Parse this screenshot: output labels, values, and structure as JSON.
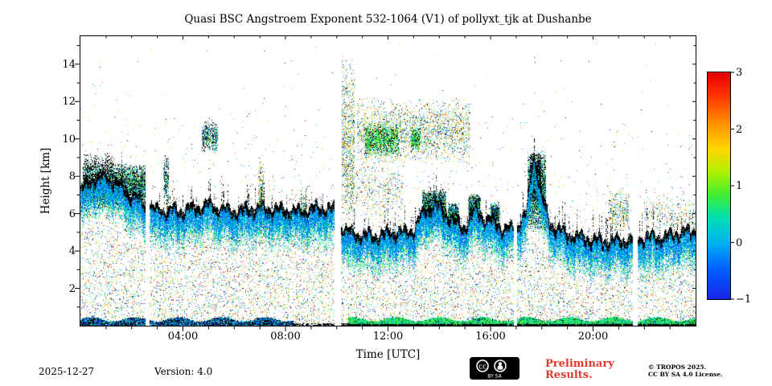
{
  "footer": {
    "date": "2025-12-27",
    "version": "Version: 4.0",
    "preliminary_line1": "Preliminary",
    "preliminary_line2": "Results.",
    "preliminary_color": "#e23b2e",
    "copyright_line1": "© TROPOS 2025.",
    "copyright_line2": "CC BY SA 4.0 License.",
    "cc_badge": {
      "cc": "cc",
      "by_sa": "BY  SA"
    }
  },
  "chart_data": {
    "type": "heatmap",
    "title": "Quasi BSC Angstroem Exponent 532-1064 (V1) of pollyxt_tjk at Dushanbe",
    "xlabel": "Time [UTC]",
    "ylabel": "Height [km]",
    "xlim": [
      0,
      24
    ],
    "ylim": [
      0,
      15.5
    ],
    "grid": false,
    "x_major_ticks": [
      {
        "hour": 4,
        "label": "04:00"
      },
      {
        "hour": 8,
        "label": "08:00"
      },
      {
        "hour": 12,
        "label": "12:00"
      },
      {
        "hour": 16,
        "label": "16:00"
      },
      {
        "hour": 20,
        "label": "20:00"
      }
    ],
    "x_minor_step_hours": 1,
    "y_major_ticks": [
      {
        "km": 2,
        "label": "2"
      },
      {
        "km": 4,
        "label": "4"
      },
      {
        "km": 6,
        "label": "6"
      },
      {
        "km": 8,
        "label": "8"
      },
      {
        "km": 10,
        "label": "10"
      },
      {
        "km": 12,
        "label": "12"
      },
      {
        "km": 14,
        "label": "14"
      }
    ],
    "y_minor_step_km": 1,
    "colorbar": {
      "position": "right",
      "vmin": -1,
      "vmax": 3,
      "ticks": [
        {
          "value": 3,
          "label": "3"
        },
        {
          "value": 2,
          "label": "2"
        },
        {
          "value": 1,
          "label": "1"
        },
        {
          "value": 0,
          "label": "0"
        },
        {
          "value": -1,
          "label": "−1"
        }
      ],
      "colormap_stops": [
        {
          "pos": 0.0,
          "color": "#1724e8"
        },
        {
          "pos": 0.14,
          "color": "#0064ff"
        },
        {
          "pos": 0.25,
          "color": "#00b4f0"
        },
        {
          "pos": 0.36,
          "color": "#00e0b0"
        },
        {
          "pos": 0.46,
          "color": "#40ee30"
        },
        {
          "pos": 0.56,
          "color": "#b0f000"
        },
        {
          "pos": 0.66,
          "color": "#ffd800"
        },
        {
          "pos": 0.78,
          "color": "#ff8c00"
        },
        {
          "pos": 0.9,
          "color": "#ff3000"
        },
        {
          "pos": 1.0,
          "color": "#e60000"
        }
      ]
    },
    "layer_top_km": [
      [
        0,
        7.4
      ],
      [
        0.5,
        7.9
      ],
      [
        1,
        8.1
      ],
      [
        1.5,
        7.6
      ],
      [
        2,
        7.1
      ],
      [
        2.5,
        6.6
      ],
      [
        3,
        6.3
      ],
      [
        3.5,
        6.2
      ],
      [
        4,
        6.3
      ],
      [
        4.5,
        6.4
      ],
      [
        5,
        6.6
      ],
      [
        5.5,
        6.3
      ],
      [
        6,
        6.2
      ],
      [
        6.5,
        6.3
      ],
      [
        7,
        6.4
      ],
      [
        7.5,
        6.3
      ],
      [
        8,
        6.3
      ],
      [
        8.5,
        6.2
      ],
      [
        9,
        6.3
      ],
      [
        9.5,
        6.4
      ],
      [
        9.9,
        6.3
      ],
      [
        10.2,
        5.4
      ],
      [
        10.6,
        5.0
      ],
      [
        11,
        5.0
      ],
      [
        11.5,
        4.9
      ],
      [
        12,
        5.0
      ],
      [
        12.5,
        5.1
      ],
      [
        13,
        5.2
      ],
      [
        13.4,
        6.2
      ],
      [
        13.8,
        6.6
      ],
      [
        14.2,
        6.2
      ],
      [
        14.6,
        5.6
      ],
      [
        15,
        5.4
      ],
      [
        15.4,
        6.3
      ],
      [
        15.8,
        5.8
      ],
      [
        16.2,
        5.6
      ],
      [
        16.6,
        5.2
      ],
      [
        17,
        5.3
      ],
      [
        17.4,
        6.2
      ],
      [
        17.7,
        9.2
      ],
      [
        18,
        7.0
      ],
      [
        18.3,
        5.6
      ],
      [
        18.7,
        5.2
      ],
      [
        19,
        5.0
      ],
      [
        19.5,
        4.8
      ],
      [
        20,
        4.7
      ],
      [
        20.5,
        4.6
      ],
      [
        21,
        4.6
      ],
      [
        21.5,
        4.7
      ],
      [
        22,
        4.8
      ],
      [
        22.5,
        4.8
      ],
      [
        23,
        4.9
      ],
      [
        23.5,
        5.1
      ],
      [
        24,
        5.2
      ]
    ],
    "data_gap_hours": [
      [
        2.55,
        2.72
      ],
      [
        9.92,
        10.18
      ],
      [
        16.9,
        17.03
      ],
      [
        21.55,
        21.75
      ]
    ],
    "ground_band": [
      {
        "t0": 0,
        "t1": 8.3,
        "style": "dark"
      },
      {
        "t0": 8.3,
        "t1": 10.45,
        "style": "sparse"
      },
      {
        "t0": 10.45,
        "t1": 24,
        "style": "green"
      }
    ],
    "clusters": [
      {
        "t0": 0.1,
        "t1": 2.55,
        "h0": 6.2,
        "h1": 8.7,
        "n": 5200,
        "style": "dark-mix"
      },
      {
        "t0": 0.15,
        "t1": 1.3,
        "h0": 7.5,
        "h1": 9.3,
        "n": 450,
        "style": "black"
      },
      {
        "t0": 3.25,
        "t1": 3.45,
        "h0": 6.4,
        "h1": 9.2,
        "n": 260,
        "style": "dark-mix"
      },
      {
        "t0": 4.75,
        "t1": 5.35,
        "h0": 9.2,
        "h1": 11.0,
        "n": 520,
        "style": "dark-mix"
      },
      {
        "t0": 6.95,
        "t1": 7.15,
        "h0": 4.2,
        "h1": 9.0,
        "n": 380,
        "style": "sparse-color"
      },
      {
        "t0": 8.6,
        "t1": 8.85,
        "h0": 4.3,
        "h1": 7.5,
        "n": 230,
        "style": "sparse-color"
      },
      {
        "t0": 10.2,
        "t1": 10.7,
        "h0": 5.2,
        "h1": 14.6,
        "n": 850,
        "style": "sparse-color"
      },
      {
        "t0": 10.4,
        "t1": 12.6,
        "h0": 5.5,
        "h1": 9.0,
        "n": 520,
        "style": "sparse-color"
      },
      {
        "t0": 10.8,
        "t1": 15.2,
        "h0": 8.6,
        "h1": 12.3,
        "n": 2400,
        "style": "sparse-color"
      },
      {
        "t0": 11.1,
        "t1": 12.4,
        "h0": 9.0,
        "h1": 10.9,
        "n": 1500,
        "style": "green-mix"
      },
      {
        "t0": 12.9,
        "t1": 13.25,
        "h0": 9.3,
        "h1": 10.6,
        "n": 480,
        "style": "green-mix"
      },
      {
        "t0": 13.35,
        "t1": 14.25,
        "h0": 5.3,
        "h1": 7.3,
        "n": 2600,
        "style": "dark-mix"
      },
      {
        "t0": 14.35,
        "t1": 14.75,
        "h0": 5.2,
        "h1": 6.6,
        "n": 900,
        "style": "dark-mix"
      },
      {
        "t0": 15.15,
        "t1": 15.6,
        "h0": 5.4,
        "h1": 7.1,
        "n": 1200,
        "style": "dark-mix"
      },
      {
        "t0": 16.0,
        "t1": 16.35,
        "h0": 5.3,
        "h1": 6.6,
        "n": 600,
        "style": "dark-mix"
      },
      {
        "t0": 17.45,
        "t1": 18.15,
        "h0": 5.0,
        "h1": 9.4,
        "n": 3000,
        "style": "dark-mix"
      },
      {
        "t0": 17.55,
        "t1": 17.95,
        "h0": 6.5,
        "h1": 9.3,
        "n": 1400,
        "style": "black"
      },
      {
        "t0": 20.6,
        "t1": 21.4,
        "h0": 4.9,
        "h1": 7.3,
        "n": 350,
        "style": "sparse-color"
      },
      {
        "t0": 22.0,
        "t1": 24.0,
        "h0": 5.0,
        "h1": 7.0,
        "n": 260,
        "style": "sparse-color"
      }
    ],
    "noise_seed": 42
  }
}
